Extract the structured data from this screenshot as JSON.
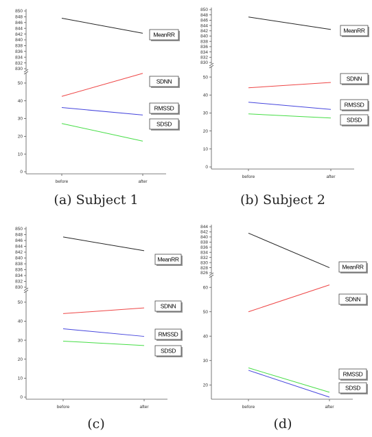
{
  "chart_data": [
    {
      "type": "line",
      "caption": "(a) Subject 1",
      "categories": [
        "before",
        "after"
      ],
      "upper_ticks": [
        830,
        832,
        834,
        836,
        838,
        840,
        842,
        844,
        846,
        848,
        850
      ],
      "lower_ticks": [
        0,
        10,
        20,
        30,
        40,
        50
      ],
      "upper_ylim": [
        830,
        850
      ],
      "lower_ylim": [
        0,
        55
      ],
      "series": [
        {
          "name": "MeanRR",
          "values": [
            847.5,
            842.3
          ],
          "color": "#222222",
          "axis": "upper"
        },
        {
          "name": "SDNN",
          "values": [
            42.5,
            55.5
          ],
          "color": "#ee4444",
          "axis": "lower"
        },
        {
          "name": "RMSSD",
          "values": [
            36.2,
            32.0
          ],
          "color": "#4444dd",
          "axis": "lower"
        },
        {
          "name": "SDSD",
          "values": [
            27.2,
            17.3
          ],
          "color": "#44dd44",
          "axis": "lower"
        }
      ]
    },
    {
      "type": "line",
      "caption": "(b) Subject 2",
      "categories": [
        "before",
        "after"
      ],
      "upper_ticks": [
        830,
        832,
        834,
        836,
        838,
        840,
        842,
        844,
        846,
        848,
        850
      ],
      "lower_ticks": [
        0,
        10,
        20,
        30,
        40,
        50
      ],
      "upper_ylim": [
        830,
        850
      ],
      "lower_ylim": [
        0,
        55
      ],
      "series": [
        {
          "name": "MeanRR",
          "values": [
            847.2,
            842.5
          ],
          "color": "#222222",
          "axis": "upper"
        },
        {
          "name": "SDNN",
          "values": [
            44.0,
            47.0
          ],
          "color": "#ee4444",
          "axis": "lower"
        },
        {
          "name": "RMSSD",
          "values": [
            36.0,
            32.0
          ],
          "color": "#4444dd",
          "axis": "lower"
        },
        {
          "name": "SDSD",
          "values": [
            29.5,
            27.2
          ],
          "color": "#44dd44",
          "axis": "lower"
        }
      ]
    },
    {
      "type": "line",
      "caption": "(c)",
      "categories": [
        "before",
        "after"
      ],
      "upper_ticks": [
        830,
        832,
        834,
        836,
        838,
        840,
        842,
        844,
        846,
        848,
        850
      ],
      "lower_ticks": [
        0,
        10,
        20,
        30,
        40,
        50
      ],
      "upper_ylim": [
        830,
        850
      ],
      "lower_ylim": [
        0,
        55
      ],
      "series": [
        {
          "name": "MeanRR",
          "values": [
            847.2,
            842.5
          ],
          "color": "#222222",
          "axis": "upper"
        },
        {
          "name": "SDNN",
          "values": [
            44.0,
            47.0
          ],
          "color": "#ee4444",
          "axis": "lower"
        },
        {
          "name": "RMSSD",
          "values": [
            36.0,
            32.0
          ],
          "color": "#4444dd",
          "axis": "lower"
        },
        {
          "name": "SDSD",
          "values": [
            29.5,
            27.2
          ],
          "color": "#44dd44",
          "axis": "lower"
        }
      ]
    },
    {
      "type": "line",
      "caption": "(d)",
      "categories": [
        "before",
        "after"
      ],
      "upper_ticks": [
        826,
        828,
        830,
        832,
        834,
        836,
        838,
        840,
        842,
        844
      ],
      "lower_ticks": [
        20,
        30,
        40,
        50,
        60
      ],
      "upper_ylim": [
        826,
        844
      ],
      "lower_ylim": [
        15,
        64
      ],
      "series": [
        {
          "name": "MeanRR",
          "values": [
            841.5,
            828.0
          ],
          "color": "#222222",
          "axis": "upper"
        },
        {
          "name": "SDNN",
          "values": [
            50.0,
            61.0
          ],
          "color": "#ee4444",
          "axis": "lower"
        },
        {
          "name": "RMSSD",
          "values": [
            27.0,
            17.0
          ],
          "color": "#44dd44",
          "axis": "lower"
        },
        {
          "name": "SDSD",
          "values": [
            26.0,
            15.0
          ],
          "color": "#4444dd",
          "axis": "lower"
        }
      ]
    }
  ]
}
